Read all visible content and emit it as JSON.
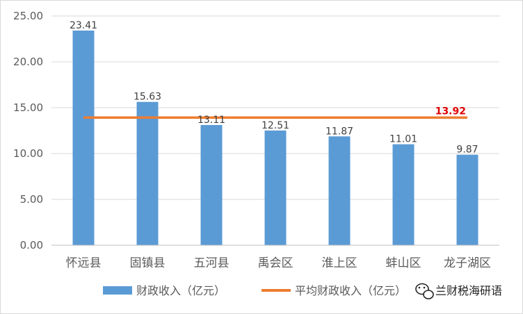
{
  "chart_data": {
    "type": "bar",
    "categories": [
      "怀远县",
      "固镇县",
      "五河县",
      "禹会区",
      "淮上区",
      "蚌山区",
      "龙子湖区"
    ],
    "series": [
      {
        "name": "财政收入（亿元）",
        "values": [
          23.41,
          15.63,
          13.11,
          12.51,
          11.87,
          11.01,
          9.87
        ],
        "color": "#5b9bd5"
      }
    ],
    "reference_line": {
      "name": "平均财政收入（亿元）",
      "value": 13.92,
      "label": "13.92",
      "color": "#ed7d31",
      "label_color": "#e00000"
    },
    "yticks": [
      "0.00",
      "5.00",
      "10.00",
      "15.00",
      "20.00",
      "25.00"
    ],
    "ylim": [
      0,
      25
    ],
    "grid": true,
    "legend_position": "bottom",
    "title": "",
    "xlabel": "",
    "ylabel": ""
  },
  "legend": {
    "bar_label": "财政收入（亿元）",
    "line_label": "平均财政收入（亿元）"
  },
  "watermark": {
    "text": "兰财税海研语",
    "icon": "wechat-icon"
  }
}
